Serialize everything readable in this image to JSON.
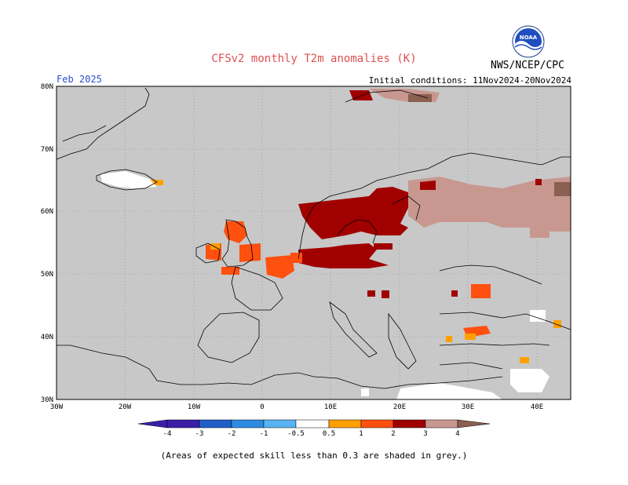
{
  "title": "CFSv2 monthly T2m anomalies (K)",
  "month": "Feb 2025",
  "initial_conditions": "Initial conditions: 11Nov2024-20Nov2024",
  "agency": "NWS/NCEP/CPC",
  "logo_text": "NOAA",
  "footnote": "(Areas of expected skill less than 0.3 are shaded in grey.)",
  "map": {
    "lon_range": [
      -30,
      45
    ],
    "lat_range": [
      30,
      80
    ],
    "background_color": "#c8c8c8",
    "lat_labels": [
      "30N",
      "40N",
      "50N",
      "60N",
      "70N",
      "80N"
    ],
    "lon_labels": [
      "30W",
      "20W",
      "10W",
      "0",
      "10E",
      "20E",
      "30E",
      "40E"
    ]
  },
  "colorbar": {
    "labels": [
      "-4",
      "-3",
      "-2",
      "-1",
      "-0.5",
      "0.5",
      "1",
      "2",
      "3",
      "4"
    ],
    "colors": [
      "#3a1fa8",
      "#1f5fc8",
      "#2e8ce0",
      "#58b4f0",
      "#ffffff",
      "#ffa000",
      "#ff5010",
      "#a00000",
      "#c89890",
      "#8a6050"
    ]
  },
  "anomaly_regions": [
    {
      "category": "3-4",
      "color": "#c89890"
    },
    {
      "category": "2-3",
      "color": "#a00000"
    },
    {
      "category": "1-2",
      "color": "#ff5010"
    },
    {
      "category": "0.5-1",
      "color": "#ffa000"
    },
    {
      "category": "4+",
      "color": "#8a6050"
    }
  ]
}
